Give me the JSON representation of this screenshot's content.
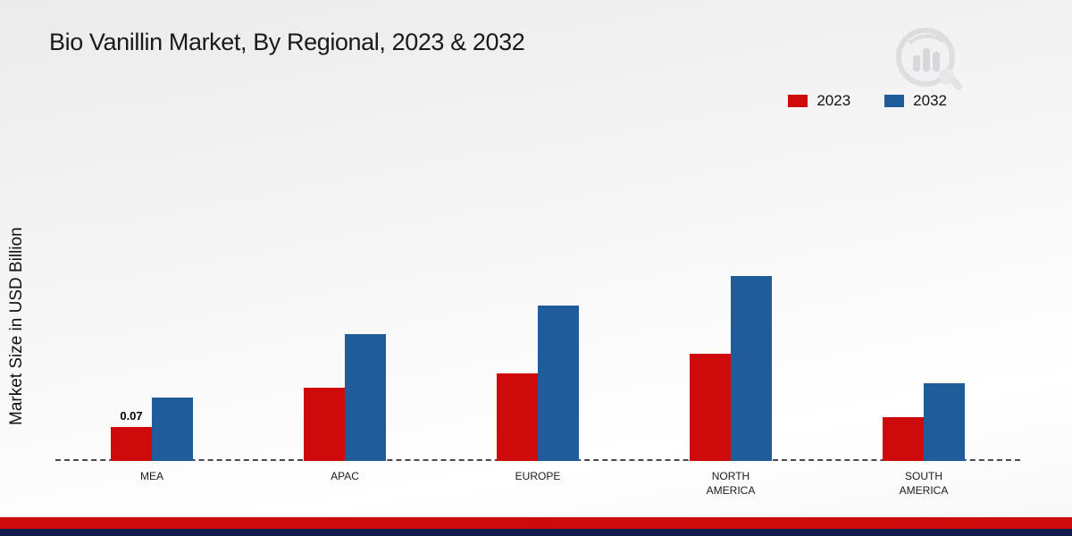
{
  "title": "Bio Vanillin Market, By Regional, 2023 & 2032",
  "ylabel": "Market Size in USD Billion",
  "legend": [
    {
      "label": "2023",
      "color": "#cf0a0a"
    },
    {
      "label": "2032",
      "color": "#1f5c99"
    }
  ],
  "chart_data": {
    "type": "bar",
    "title": "Bio Vanillin Market, By Regional, 2023 & 2032",
    "ylabel": "Market Size in USD Billion",
    "units": "USD Billion",
    "categories": [
      "MEA",
      "APAC",
      "EUROPE",
      "NORTH\nAMERICA",
      "SOUTH\nAMERICA"
    ],
    "series": [
      {
        "name": "2023",
        "color": "#cf0a0a",
        "values": [
          0.07,
          0.15,
          0.18,
          0.22,
          0.09
        ],
        "value_labels": [
          "0.07",
          "",
          "",
          "",
          ""
        ]
      },
      {
        "name": "2032",
        "color": "#1f5c99",
        "values": [
          0.13,
          0.26,
          0.32,
          0.38,
          0.16
        ],
        "value_labels": [
          "",
          "",
          "",
          "",
          ""
        ]
      }
    ],
    "ylim": [
      0,
      0.42
    ],
    "grid": false,
    "legend_position": "top-right",
    "baseline_style": "dashed"
  },
  "footer": {
    "accent_color": "#cf0a0a",
    "base_color": "#101c4a"
  }
}
